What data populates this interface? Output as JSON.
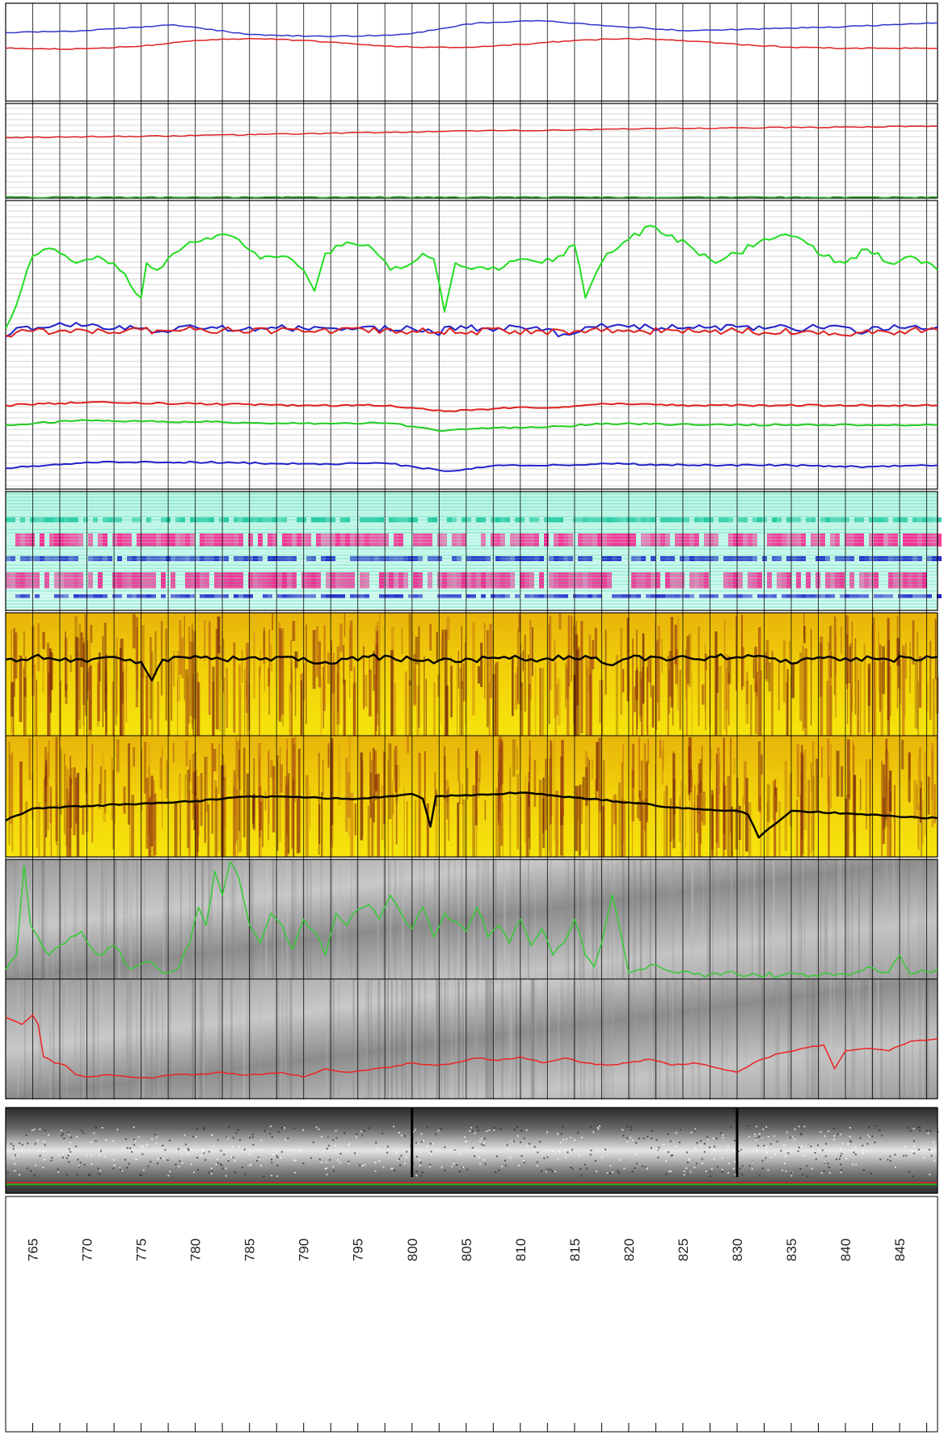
{
  "chart_data": {
    "type": "line",
    "title": "",
    "xlabel": "",
    "ylabel": "",
    "depth_axis": {
      "min": 762.5,
      "max": 848.5,
      "major_step": 2.5,
      "ticks": [
        765,
        770,
        775,
        780,
        785,
        790,
        795,
        800,
        805,
        810,
        815,
        820,
        825,
        830,
        835,
        840,
        845
      ],
      "tick_labels": [
        "765",
        "770",
        "775",
        "780",
        "785",
        "790",
        "795",
        "800",
        "805",
        "810",
        "815",
        "820",
        "825",
        "830",
        "835",
        "840",
        "845"
      ]
    },
    "grid": true,
    "tracks": [
      {
        "id": "track1",
        "series": [
          {
            "color": "#3333cc",
            "x": [
              762.5,
              770,
              778,
              785,
              792,
              797,
              800,
              806,
              812,
              817,
              825,
              833,
              840,
              848.5
            ],
            "values": [
              0.7,
              0.72,
              0.78,
              0.68,
              0.66,
              0.67,
              0.69,
              0.8,
              0.82,
              0.78,
              0.72,
              0.74,
              0.76,
              0.8
            ]
          },
          {
            "color": "#dd2222",
            "x": [
              762.5,
              768,
              775,
              780,
              785,
              790,
              795,
              800,
              805,
              810,
              815,
              820,
              825,
              830,
              835,
              840,
              848.5
            ],
            "values": [
              0.54,
              0.53,
              0.56,
              0.62,
              0.64,
              0.62,
              0.58,
              0.55,
              0.55,
              0.58,
              0.62,
              0.64,
              0.62,
              0.58,
              0.55,
              0.54,
              0.54
            ]
          }
        ]
      },
      {
        "id": "track2",
        "series": [
          {
            "color": "#dd2222",
            "x": [
              762.5,
              780,
              800,
              820,
              848.5
            ],
            "values": [
              0.64,
              0.66,
              0.7,
              0.73,
              0.76
            ]
          },
          {
            "color": "#22aa22",
            "x": [
              762.5,
              848.5
            ],
            "values": [
              0.01,
              0.01
            ]
          }
        ]
      },
      {
        "id": "track3",
        "series": [
          {
            "color": "#22dd22",
            "x": [
              762.5,
              763.5,
              765,
              767,
              769,
              771,
              773,
              775,
              775.5,
              776.5,
              778,
              780,
              782,
              784,
              786,
              788,
              790,
              791,
              792,
              794,
              796,
              798,
              800,
              801,
              802,
              803,
              804,
              806,
              808,
              810,
              812,
              813.5,
              815,
              816,
              818,
              820,
              822,
              824,
              826,
              828,
              830,
              832,
              834,
              836,
              838,
              840,
              842,
              844,
              846,
              848.5
            ],
            "values": [
              0.08,
              0.25,
              0.6,
              0.65,
              0.55,
              0.6,
              0.5,
              0.3,
              0.55,
              0.5,
              0.62,
              0.7,
              0.75,
              0.72,
              0.58,
              0.6,
              0.5,
              0.35,
              0.62,
              0.7,
              0.68,
              0.5,
              0.55,
              0.62,
              0.58,
              0.2,
              0.55,
              0.52,
              0.5,
              0.58,
              0.55,
              0.6,
              0.68,
              0.3,
              0.62,
              0.72,
              0.82,
              0.75,
              0.65,
              0.55,
              0.62,
              0.7,
              0.75,
              0.72,
              0.6,
              0.55,
              0.65,
              0.55,
              0.6,
              0.5
            ]
          },
          {
            "color": "#2222cc",
            "x": [
              762.5,
              764,
              770,
              775,
              776,
              780,
              790,
              795,
              800,
              802.5,
              803,
              805,
              810,
              814,
              816,
              820,
              825,
              830,
              835,
              840,
              841,
              843,
              848.5
            ],
            "values": [
              0.02,
              0.09,
              0.1,
              0.08,
              0.05,
              0.09,
              0.08,
              0.08,
              0.08,
              0.03,
              0.09,
              0.08,
              0.09,
              0.04,
              0.09,
              0.09,
              0.08,
              0.09,
              0.08,
              0.09,
              0.05,
              0.09,
              0.09
            ]
          },
          {
            "color": "#dd2222",
            "x": [
              762.5,
              765,
              780,
              800,
              815,
              830,
              841,
              848.5
            ],
            "values": [
              0.03,
              0.06,
              0.07,
              0.06,
              0.06,
              0.06,
              0.05,
              0.07
            ]
          }
        ]
      },
      {
        "id": "track4",
        "series": [
          {
            "color": "#dd2222",
            "x": [
              762.5,
              770,
              780,
              790,
              798,
              803,
              808,
              814,
              818,
              826,
              834,
              842,
              848.5
            ],
            "values": [
              0.56,
              0.58,
              0.57,
              0.56,
              0.56,
              0.52,
              0.54,
              0.55,
              0.57,
              0.56,
              0.56,
              0.56,
              0.56
            ]
          },
          {
            "color": "#22cc22",
            "x": [
              762.5,
              770,
              780,
              790,
              798,
              803,
              808,
              814,
              818,
              826,
              834,
              842,
              848.5
            ],
            "values": [
              0.43,
              0.46,
              0.45,
              0.44,
              0.44,
              0.39,
              0.41,
              0.42,
              0.44,
              0.43,
              0.43,
              0.43,
              0.43
            ]
          },
          {
            "color": "#2222cc",
            "x": [
              762.5,
              770,
              780,
              790,
              798,
              803,
              808,
              814,
              818,
              826,
              834,
              842,
              848.5
            ],
            "values": [
              0.14,
              0.18,
              0.18,
              0.17,
              0.17,
              0.12,
              0.16,
              0.16,
              0.17,
              0.16,
              0.16,
              0.15,
              0.16
            ]
          }
        ]
      },
      {
        "id": "track5",
        "series": []
      },
      {
        "id": "track6",
        "series": [
          {
            "color": "#000000",
            "x": [
              762.5,
              765,
              768,
              770,
              772,
              775,
              776,
              777,
              780,
              784,
              788,
              792,
              796,
              800,
              804,
              808,
              812,
              816,
              818,
              820,
              824,
              828,
              832,
              834,
              836,
              840,
              844,
              848.5
            ],
            "values": [
              0.62,
              0.64,
              0.63,
              0.6,
              0.64,
              0.6,
              0.45,
              0.62,
              0.65,
              0.62,
              0.64,
              0.6,
              0.64,
              0.62,
              0.6,
              0.63,
              0.62,
              0.65,
              0.58,
              0.63,
              0.62,
              0.64,
              0.65,
              0.6,
              0.62,
              0.63,
              0.62,
              0.64
            ]
          }
        ]
      },
      {
        "id": "track7",
        "series": [
          {
            "color": "#000000",
            "x": [
              762.5,
              765,
              770,
              775,
              780,
              785,
              790,
              795,
              800,
              801,
              801.7,
              802.2,
              805,
              810,
              815,
              820,
              825,
              830,
              831,
              832,
              835,
              840,
              845,
              848.5
            ],
            "values": [
              0.3,
              0.4,
              0.42,
              0.44,
              0.46,
              0.5,
              0.49,
              0.48,
              0.52,
              0.48,
              0.25,
              0.5,
              0.51,
              0.53,
              0.49,
              0.45,
              0.4,
              0.38,
              0.35,
              0.16,
              0.38,
              0.36,
              0.33,
              0.32
            ]
          }
        ]
      },
      {
        "id": "track8",
        "series": [
          {
            "color": "#33cc33",
            "x": [
              762.5,
              763.5,
              764.2,
              764.8,
              765.5,
              766.5,
              768,
              769.5,
              771,
              772.5,
              774,
              775.5,
              777,
              778.5,
              779.5,
              780.3,
              781,
              781.8,
              782.5,
              783.2,
              784,
              785,
              786,
              787,
              788,
              789,
              790,
              791,
              792,
              793,
              794,
              795,
              796,
              797,
              798,
              799,
              800,
              801,
              802,
              803,
              804,
              805,
              806,
              807,
              808,
              809,
              810,
              811,
              812,
              813,
              814,
              815,
              816,
              816.8,
              817.5,
              818.5,
              820,
              821,
              822,
              824,
              826,
              830,
              834,
              838,
              840,
              842,
              844,
              845,
              846,
              848.5
            ],
            "values": [
              0.08,
              0.2,
              0.95,
              0.45,
              0.35,
              0.2,
              0.3,
              0.4,
              0.2,
              0.28,
              0.08,
              0.15,
              0.05,
              0.1,
              0.3,
              0.6,
              0.45,
              0.9,
              0.7,
              0.98,
              0.85,
              0.45,
              0.3,
              0.55,
              0.45,
              0.25,
              0.5,
              0.4,
              0.2,
              0.55,
              0.45,
              0.58,
              0.62,
              0.5,
              0.7,
              0.55,
              0.42,
              0.6,
              0.35,
              0.55,
              0.48,
              0.4,
              0.6,
              0.35,
              0.45,
              0.3,
              0.5,
              0.28,
              0.42,
              0.2,
              0.3,
              0.5,
              0.2,
              0.1,
              0.3,
              0.7,
              0.05,
              0.08,
              0.12,
              0.06,
              0.04,
              0.04,
              0.03,
              0.05,
              0.04,
              0.1,
              0.06,
              0.2,
              0.04,
              0.08
            ]
          }
        ]
      },
      {
        "id": "track9",
        "series": [
          {
            "color": "#ee2222",
            "x": [
              762.5,
              764,
              765,
              765.5,
              766,
              767,
              768,
              769,
              770,
              772,
              774,
              776,
              778,
              780,
              782,
              784,
              786,
              788,
              790,
              792,
              794,
              796,
              798,
              800,
              802,
              804,
              806,
              808,
              810,
              812,
              814,
              816,
              818,
              820,
              822,
              824,
              826,
              828,
              830,
              832,
              834,
              836,
              838,
              839,
              840,
              842,
              844,
              846,
              848.5
            ],
            "values": [
              0.68,
              0.62,
              0.7,
              0.62,
              0.35,
              0.3,
              0.28,
              0.2,
              0.18,
              0.2,
              0.18,
              0.17,
              0.2,
              0.2,
              0.22,
              0.2,
              0.2,
              0.22,
              0.18,
              0.25,
              0.22,
              0.24,
              0.26,
              0.3,
              0.28,
              0.3,
              0.34,
              0.32,
              0.35,
              0.3,
              0.34,
              0.3,
              0.28,
              0.3,
              0.33,
              0.28,
              0.3,
              0.26,
              0.22,
              0.32,
              0.38,
              0.42,
              0.45,
              0.25,
              0.4,
              0.42,
              0.4,
              0.48,
              0.5
            ]
          }
        ]
      },
      {
        "id": "track10",
        "series": []
      }
    ]
  }
}
